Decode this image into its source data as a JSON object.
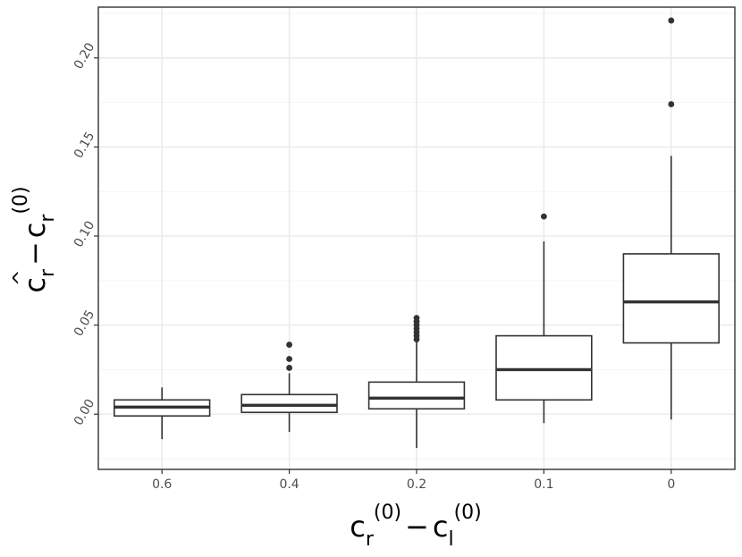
{
  "chart_data": {
    "type": "boxplot",
    "categories": [
      "0.6",
      "0.4",
      "0.2",
      "0.1",
      "0"
    ],
    "boxes": [
      {
        "category": "0.6",
        "whisker_low": -0.014,
        "q1": -0.001,
        "median": 0.004,
        "q3": 0.008,
        "whisker_high": 0.015,
        "outliers": []
      },
      {
        "category": "0.4",
        "whisker_low": -0.01,
        "q1": 0.001,
        "median": 0.005,
        "q3": 0.011,
        "whisker_high": 0.023,
        "outliers": [
          0.026,
          0.031,
          0.039
        ]
      },
      {
        "category": "0.2",
        "whisker_low": -0.019,
        "q1": 0.003,
        "median": 0.009,
        "q3": 0.018,
        "whisker_high": 0.041,
        "outliers": [
          0.042,
          0.044,
          0.046,
          0.048,
          0.05,
          0.052,
          0.054
        ]
      },
      {
        "category": "0.1",
        "whisker_low": -0.005,
        "q1": 0.008,
        "median": 0.025,
        "q3": 0.044,
        "whisker_high": 0.097,
        "outliers": [
          0.111
        ]
      },
      {
        "category": "0",
        "whisker_low": -0.003,
        "q1": 0.04,
        "median": 0.063,
        "q3": 0.09,
        "whisker_high": 0.145,
        "outliers": [
          0.174,
          0.221
        ]
      }
    ],
    "yticks": [
      "0.00",
      "0.05",
      "0.10",
      "0.15",
      "0.20"
    ],
    "ytick_values": [
      0,
      0.05,
      0.1,
      0.15,
      0.2
    ],
    "ylim": [
      -0.031,
      0.2285
    ],
    "xlabel": {
      "main_left": "c",
      "sub_left": "r",
      "sup_left": "(0)",
      "minus": "−",
      "main_right": "c",
      "sub_right": "l",
      "sup_right": "(0)"
    },
    "ylabel": {
      "hat": "^",
      "main_left": "c",
      "sub_left": "r",
      "minus": "−",
      "main_right": "c",
      "sub_right": "r",
      "sup_right": "(0)"
    },
    "grid": true,
    "theme": "bw",
    "colors": {
      "box_fill": "#ffffff",
      "box_stroke": "#333333",
      "grid_major": "#ebebeb",
      "grid_minor": "#f5f5f5",
      "panel_border": "#333333",
      "tick_label": "#4d4d4d"
    }
  }
}
